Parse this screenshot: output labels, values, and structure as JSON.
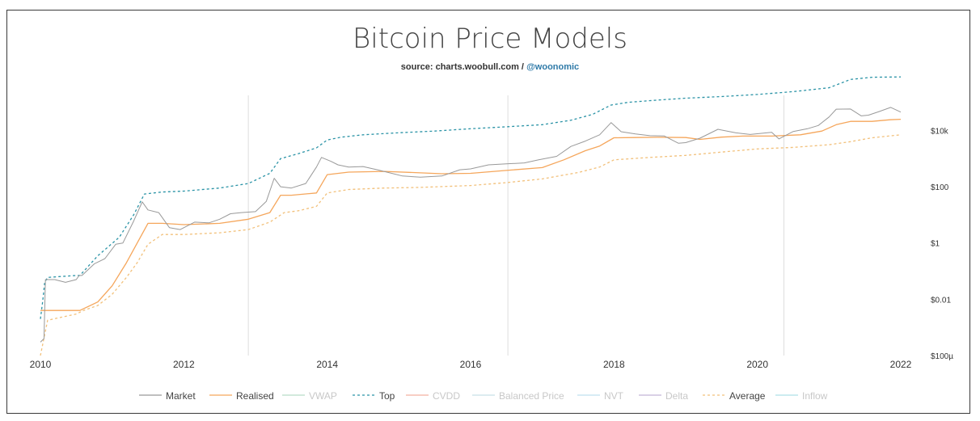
{
  "chart_data": {
    "type": "line",
    "title": "Bitcoin Price Models",
    "subtitle_prefix": "source: charts.woobull.com / ",
    "subtitle_handle": "@woonomic",
    "y_scale": "log",
    "ylim": [
      0.0001,
      300000
    ],
    "xlim": [
      2010,
      2022
    ],
    "x_ticks": [
      "2010",
      "2012",
      "2014",
      "2016",
      "2018",
      "2020",
      "2022"
    ],
    "y_ticks": [
      {
        "label": "$10k",
        "value": 10000
      },
      {
        "label": "$100",
        "value": 100
      },
      {
        "label": "$1",
        "value": 1
      },
      {
        "label": "$0.01",
        "value": 0.01
      },
      {
        "label": "$100µ",
        "value": 0.0001
      }
    ],
    "vertical_markers": [
      2012.9,
      2016.52,
      2020.37
    ],
    "legend": [
      {
        "name": "Market",
        "color": "#999999",
        "dash": "solid"
      },
      {
        "name": "Realised",
        "color": "#f5a65b",
        "dash": "solid"
      },
      {
        "name": "VWAP",
        "color": "#b7ddc6",
        "dash": "solid"
      },
      {
        "name": "Top",
        "color": "#2a93a6",
        "dash": "dashed"
      },
      {
        "name": "CVDD",
        "color": "#f3b1a1",
        "dash": "solid"
      },
      {
        "name": "Balanced Price",
        "color": "#c8e0e8",
        "dash": "solid"
      },
      {
        "name": "NVT",
        "color": "#bfe0ef",
        "dash": "solid"
      },
      {
        "name": "Delta",
        "color": "#c2b4d6",
        "dash": "solid"
      },
      {
        "name": "Average",
        "color": "#f2c07a",
        "dash": "dashed"
      },
      {
        "name": "Inflow",
        "color": "#aee1e6",
        "dash": "solid"
      }
    ],
    "series": [
      {
        "name": "Market",
        "color": "#999999",
        "dash": "solid",
        "x": [
          2010.0,
          2010.05,
          2010.07,
          2010.2,
          2010.35,
          2010.5,
          2010.54,
          2010.58,
          2010.75,
          2010.9,
          2011.05,
          2011.15,
          2011.3,
          2011.42,
          2011.5,
          2011.65,
          2011.8,
          2011.95,
          2012.15,
          2012.35,
          2012.5,
          2012.65,
          2012.8,
          2013.0,
          2013.15,
          2013.26,
          2013.35,
          2013.5,
          2013.7,
          2013.85,
          2013.92,
          2014.05,
          2014.15,
          2014.3,
          2014.5,
          2014.7,
          2014.9,
          2015.05,
          2015.3,
          2015.6,
          2015.85,
          2016.0,
          2016.25,
          2016.5,
          2016.75,
          2016.95,
          2017.2,
          2017.4,
          2017.6,
          2017.8,
          2017.96,
          2018.1,
          2018.3,
          2018.5,
          2018.7,
          2018.9,
          2019.0,
          2019.2,
          2019.45,
          2019.7,
          2019.9,
          2020.2,
          2020.3,
          2020.5,
          2020.7,
          2020.85,
          2021.0,
          2021.1,
          2021.3,
          2021.45,
          2021.55,
          2021.7,
          2021.86,
          2022.0
        ],
        "y": [
          0.0003,
          0.0004,
          0.05,
          0.05,
          0.04,
          0.05,
          0.07,
          0.07,
          0.18,
          0.28,
          0.9,
          1.0,
          6,
          29,
          15,
          12,
          3.5,
          3,
          5.5,
          5.2,
          7,
          11,
          12,
          13,
          30,
          200,
          100,
          90,
          130,
          500,
          1100,
          800,
          600,
          500,
          520,
          400,
          300,
          240,
          220,
          240,
          400,
          430,
          600,
          650,
          700,
          900,
          1200,
          2700,
          4200,
          7000,
          19000,
          9000,
          7500,
          6500,
          6400,
          3500,
          3700,
          5300,
          11000,
          8200,
          7200,
          8600,
          5000,
          9200,
          11500,
          15000,
          30000,
          57000,
          58000,
          33000,
          35000,
          47000,
          66000,
          45000
        ]
      },
      {
        "name": "Realised",
        "color": "#f5a65b",
        "dash": "solid",
        "x": [
          2010.0,
          2010.55,
          2010.8,
          2011.0,
          2011.2,
          2011.35,
          2011.5,
          2011.7,
          2012.0,
          2012.5,
          2012.9,
          2013.2,
          2013.35,
          2013.5,
          2013.85,
          2014.0,
          2014.3,
          2014.8,
          2015.2,
          2015.6,
          2016.0,
          2016.5,
          2017.0,
          2017.3,
          2017.6,
          2017.8,
          2018.0,
          2018.3,
          2018.6,
          2019.0,
          2019.2,
          2019.5,
          2019.8,
          2020.2,
          2020.6,
          2020.9,
          2021.1,
          2021.3,
          2021.6,
          2021.85,
          2022.0
        ],
        "y": [
          0.004,
          0.004,
          0.008,
          0.03,
          0.2,
          1.0,
          5.0,
          5.0,
          4.5,
          5.0,
          7,
          12,
          50,
          50,
          60,
          270,
          330,
          350,
          320,
          290,
          300,
          380,
          480,
          900,
          1900,
          2800,
          5500,
          5600,
          5700,
          5600,
          4800,
          5800,
          6300,
          6300,
          7000,
          9500,
          16000,
          21000,
          21000,
          24000,
          25000
        ]
      },
      {
        "name": "Top",
        "color": "#2a93a6",
        "dash": "dashed",
        "x": [
          2010.0,
          2010.03,
          2010.06,
          2010.1,
          2010.5,
          2010.55,
          2010.8,
          2011.1,
          2011.3,
          2011.45,
          2011.7,
          2012.0,
          2012.5,
          2012.9,
          2013.2,
          2013.35,
          2013.6,
          2013.85,
          2014.0,
          2014.2,
          2014.5,
          2015.0,
          2015.5,
          2016.0,
          2016.5,
          2017.0,
          2017.4,
          2017.7,
          2017.96,
          2018.2,
          2018.6,
          2019.0,
          2019.5,
          2020.0,
          2020.5,
          2021.0,
          2021.3,
          2021.6,
          2022.0
        ],
        "y": [
          0.002,
          0.008,
          0.04,
          0.06,
          0.07,
          0.07,
          0.35,
          1.6,
          10,
          55,
          65,
          70,
          90,
          130,
          300,
          1000,
          1500,
          2400,
          4600,
          5800,
          7000,
          8300,
          9500,
          11500,
          13500,
          16000,
          23000,
          37000,
          80000,
          100000,
          120000,
          140000,
          160000,
          190000,
          240000,
          330000,
          650000,
          780000,
          800000
        ]
      },
      {
        "name": "Average",
        "color": "#f2c07a",
        "dash": "dashed",
        "x": [
          2010.0,
          2010.1,
          2010.5,
          2010.6,
          2010.8,
          2011.0,
          2011.2,
          2011.35,
          2011.5,
          2011.7,
          2012.0,
          2012.5,
          2012.9,
          2013.2,
          2013.4,
          2013.6,
          2013.85,
          2014.0,
          2014.3,
          2014.8,
          2015.3,
          2016.0,
          2016.5,
          2017.0,
          2017.5,
          2017.8,
          2018.0,
          2018.5,
          2019.0,
          2019.5,
          2020.0,
          2020.5,
          2021.0,
          2021.3,
          2021.6,
          2022.0
        ],
        "y": [
          0.0001,
          0.0018,
          0.003,
          0.004,
          0.006,
          0.015,
          0.06,
          0.2,
          0.9,
          2,
          2,
          2.3,
          3,
          5.5,
          12,
          14,
          20,
          60,
          80,
          90,
          95,
          110,
          140,
          190,
          320,
          500,
          900,
          1100,
          1300,
          1700,
          2200,
          2500,
          3100,
          4000,
          5500,
          7000
        ]
      }
    ]
  }
}
